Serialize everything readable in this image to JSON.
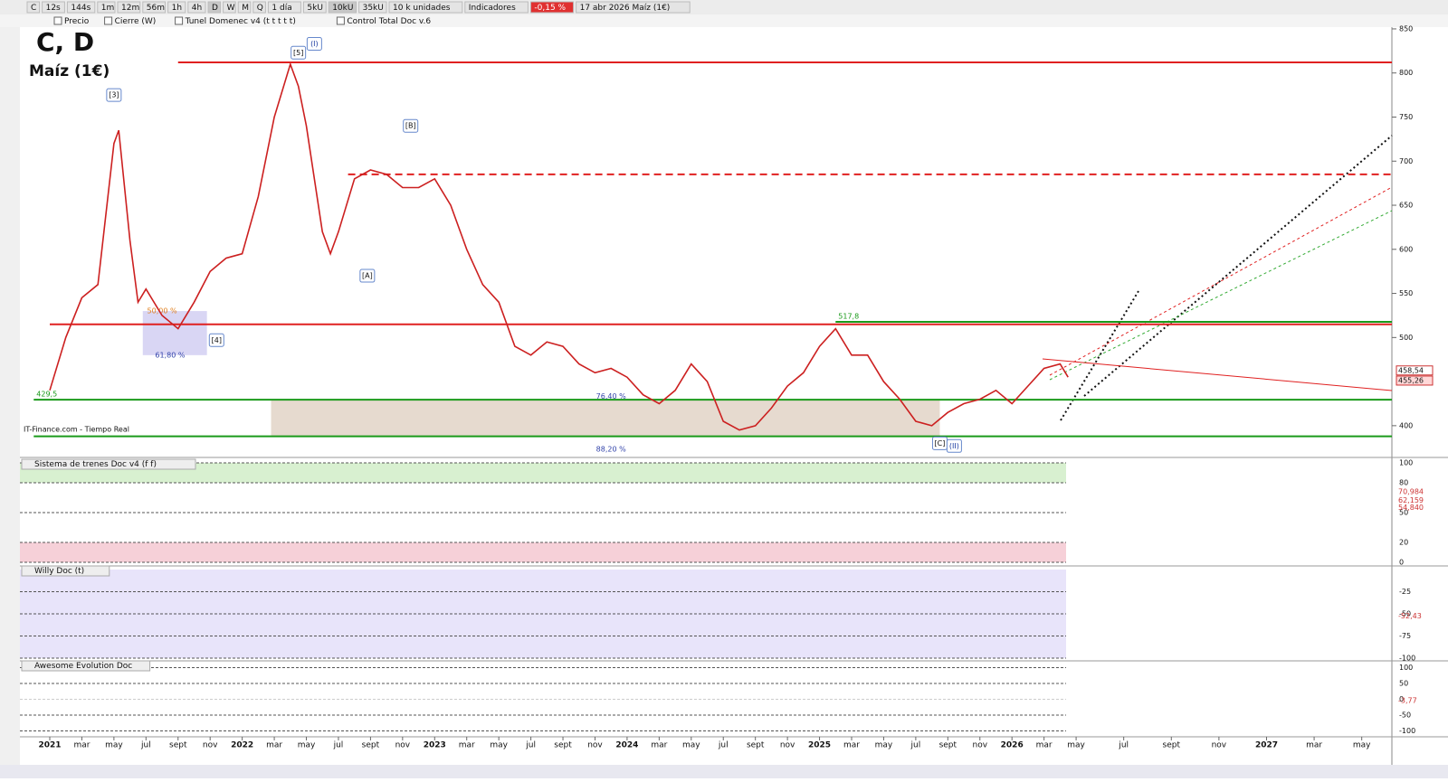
{
  "toolbar": {
    "items": [
      "C",
      "12s",
      "144s",
      "1m",
      "12m",
      "56m",
      "1h",
      "4h",
      "D",
      "W",
      "M",
      "Q",
      "1 día",
      "5kU",
      "10kU",
      "35kU",
      "10 k unidades",
      "Indicadores",
      "-0,15 %",
      "17 abr 2026 Maíz (1€)"
    ]
  },
  "legend_bar": {
    "items": [
      "Precio",
      "Cierre (W)",
      "Tunel Domenec v4 (t t t t t)",
      "Control Total Doc v.6"
    ]
  },
  "source": "IT-Finance.com - Tiempo Real",
  "chart_data": [
    {
      "type": "line",
      "title": "C, D",
      "subtitle": "Maíz (1€)",
      "color": "#cc2020",
      "x": [
        0,
        1,
        2,
        3,
        4,
        4.3,
        5,
        5.5,
        6,
        7,
        8,
        9,
        10,
        11,
        12,
        13,
        14,
        15,
        15.5,
        16,
        17,
        17.5,
        18,
        19,
        20,
        21,
        22,
        23,
        24,
        25,
        26,
        27,
        28,
        29,
        30,
        31,
        32,
        33,
        34,
        35,
        36,
        37,
        38,
        39,
        40,
        41,
        42,
        43,
        44,
        45,
        46,
        47,
        48,
        49,
        50,
        51,
        52,
        53,
        54,
        55,
        56,
        57,
        58,
        59,
        60,
        61,
        62,
        63,
        63.5
      ],
      "values": [
        440,
        500,
        545,
        560,
        720,
        735,
        610,
        540,
        555,
        525,
        510,
        540,
        575,
        590,
        595,
        660,
        750,
        810,
        785,
        740,
        620,
        595,
        620,
        680,
        690,
        685,
        670,
        670,
        680,
        650,
        600,
        560,
        540,
        490,
        480,
        495,
        490,
        470,
        460,
        465,
        455,
        435,
        425,
        440,
        470,
        450,
        405,
        395,
        400,
        420,
        445,
        460,
        490,
        510,
        480,
        480,
        450,
        430,
        405,
        400,
        415,
        425,
        430,
        440,
        425,
        445,
        465,
        470,
        455
      ],
      "ylim": [
        365,
        852
      ],
      "yticks": [
        400,
        500,
        550,
        600,
        650,
        700,
        750,
        800,
        850
      ],
      "xticks": [
        {
          "value": 0,
          "label": "2021"
        },
        {
          "value": 2,
          "label": "mar"
        },
        {
          "value": 4,
          "label": "may"
        },
        {
          "value": 6,
          "label": "jul"
        },
        {
          "value": 8,
          "label": "sept"
        },
        {
          "value": 10,
          "label": "nov"
        },
        {
          "value": 12,
          "label": "2022"
        },
        {
          "value": 14,
          "label": "mar"
        },
        {
          "value": 16,
          "label": "may"
        },
        {
          "value": 18,
          "label": "jul"
        },
        {
          "value": 20,
          "label": "sept"
        },
        {
          "value": 22,
          "label": "nov"
        },
        {
          "value": 24,
          "label": "2023"
        },
        {
          "value": 26,
          "label": "mar"
        },
        {
          "value": 28,
          "label": "may"
        },
        {
          "value": 30,
          "label": "jul"
        },
        {
          "value": 32,
          "label": "sept"
        },
        {
          "value": 34,
          "label": "nov"
        },
        {
          "value": 36,
          "label": "2024"
        },
        {
          "value": 38,
          "label": "mar"
        },
        {
          "value": 40,
          "label": "may"
        },
        {
          "value": 42,
          "label": "jul"
        },
        {
          "value": 44,
          "label": "sept"
        },
        {
          "value": 46,
          "label": "nov"
        },
        {
          "value": 48,
          "label": "2025"
        },
        {
          "value": 50,
          "label": "mar"
        },
        {
          "value": 52,
          "label": "may"
        },
        {
          "value": 54,
          "label": "jul"
        },
        {
          "value": 56,
          "label": "sept"
        },
        {
          "value": 58,
          "label": "nov"
        },
        {
          "value": 60,
          "label": "2026"
        },
        {
          "value": 62,
          "label": "mar"
        },
        {
          "value": 64,
          "label": "may"
        },
        {
          "value": 66,
          "label": "jul"
        },
        {
          "value": 68,
          "label": "sept"
        },
        {
          "value": 70,
          "label": "nov"
        },
        {
          "value": 72,
          "label": "2027"
        },
        {
          "value": 74,
          "label": "mar"
        },
        {
          "value": 76,
          "label": "may"
        }
      ],
      "levels": [
        {
          "value": 812,
          "start": 8,
          "color": "#e02020"
        },
        {
          "value": 685,
          "start": 18.6,
          "color": "#e02020",
          "dash": true
        },
        {
          "value": 515,
          "start": 0,
          "color": "#e02020"
        },
        {
          "value": 517.8,
          "label": "517,8",
          "start": 49,
          "color": "#1a9a1a"
        },
        {
          "value": 429.5,
          "label": "429,5",
          "start": -1,
          "color": "#1a9a1a"
        },
        {
          "value": 388,
          "start": -1,
          "color": "#1a9a1a"
        }
      ],
      "zones": [
        {
          "x": [
            13.8,
            55.5
          ],
          "y": [
            388,
            429.5
          ],
          "color": "#dccbbb"
        },
        {
          "x": [
            5.8,
            9.8
          ],
          "y": [
            480,
            530
          ],
          "color": "#c9c5f0"
        }
      ],
      "fib_labels": [
        {
          "label": "50,00 %",
          "x": 7,
          "value": 530
        },
        {
          "label": "61,80 %",
          "x": 7.5,
          "value": 480
        },
        {
          "label": "76,40 %",
          "x": 35,
          "value": 433
        },
        {
          "label": "88,20 %",
          "x": 35,
          "value": 373
        }
      ],
      "waves": [
        {
          "label": "[3]",
          "x": 4,
          "value": 775
        },
        {
          "label": "[5]",
          "x": 15.5,
          "value": 823
        },
        {
          "label": "(I)",
          "x": 16.5,
          "value": 833
        },
        {
          "label": "[B]",
          "x": 22.5,
          "value": 740
        },
        {
          "label": "[A]",
          "x": 19.8,
          "value": 570
        },
        {
          "label": "[4]",
          "x": 10.4,
          "value": 497
        },
        {
          "label": "[C]",
          "x": 55.5,
          "value": 380
        },
        {
          "label": "(II)",
          "x": 56.4,
          "value": 377
        }
      ],
      "price_labels": [
        {
          "value": 458.54,
          "label": "458,54"
        },
        {
          "value": 455.26,
          "label": "455,26"
        }
      ]
    },
    {
      "type": "oscillator",
      "title": "Sistema de trenes Doc v4 (f f)",
      "ylim": [
        0,
        100
      ],
      "yticks": [
        0,
        20,
        50,
        80,
        100
      ],
      "price_labels": [
        {
          "value": 70.984,
          "label": "70,984"
        },
        {
          "value": 62.159,
          "label": "62,159"
        },
        {
          "value": 54.84,
          "label": "54,840"
        }
      ]
    },
    {
      "type": "oscillator",
      "title": "Willy Doc (t)",
      "ylim": [
        -100,
        0
      ],
      "yticks": [
        -100,
        -75,
        -50,
        -25
      ],
      "price_labels": [
        {
          "value": -52.43,
          "label": "-52,43"
        }
      ]
    },
    {
      "type": "oscillator",
      "title": "Awesome Evolution Doc",
      "ylim": [
        -110,
        110
      ],
      "yticks": [
        -100,
        -50,
        0,
        50,
        100
      ],
      "price_labels": [
        {
          "value": -3.77,
          "label": "-3,77"
        }
      ]
    }
  ]
}
